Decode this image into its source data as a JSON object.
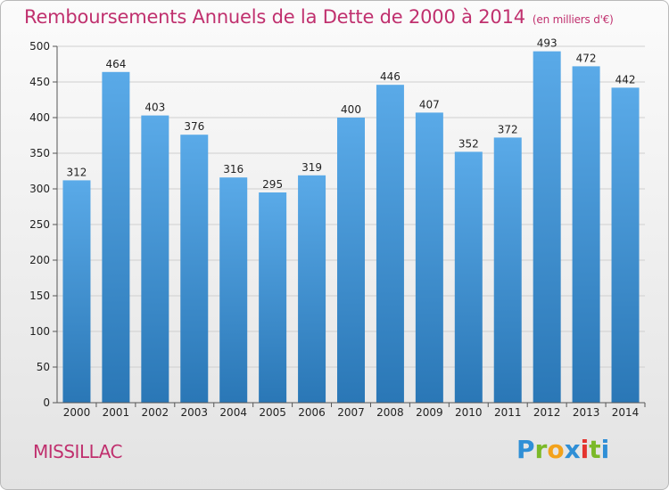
{
  "title": "Remboursements Annuels de la Dette de 2000 à 2014",
  "subtitle": "(en milliers d'€)",
  "place": "MISSILLAC",
  "logo": {
    "letters": [
      "P",
      "r",
      "o",
      "x",
      "i",
      "t",
      "i"
    ],
    "colors": [
      "#2f8fd6",
      "#7bb928",
      "#f3a21b",
      "#2f8fd6",
      "#e4342e",
      "#7bb928",
      "#2f8fd6"
    ]
  },
  "colors": {
    "bar_top": "#5aaae8",
    "bar_bottom": "#2a77b6",
    "title": "#c0306e"
  },
  "chart_data": {
    "type": "bar",
    "categories": [
      "2000",
      "2001",
      "2002",
      "2003",
      "2004",
      "2005",
      "2006",
      "2007",
      "2008",
      "2009",
      "2010",
      "2011",
      "2012",
      "2013",
      "2014"
    ],
    "values": [
      312,
      464,
      403,
      376,
      316,
      295,
      319,
      400,
      446,
      407,
      352,
      372,
      493,
      472,
      442
    ],
    "title": "Remboursements Annuels de la Dette de 2000 à 2014",
    "subtitle": "(en milliers d'€)",
    "ylim": [
      0,
      500
    ],
    "yticks": [
      0,
      50,
      100,
      150,
      200,
      250,
      300,
      350,
      400,
      450,
      500
    ],
    "grid": true
  }
}
